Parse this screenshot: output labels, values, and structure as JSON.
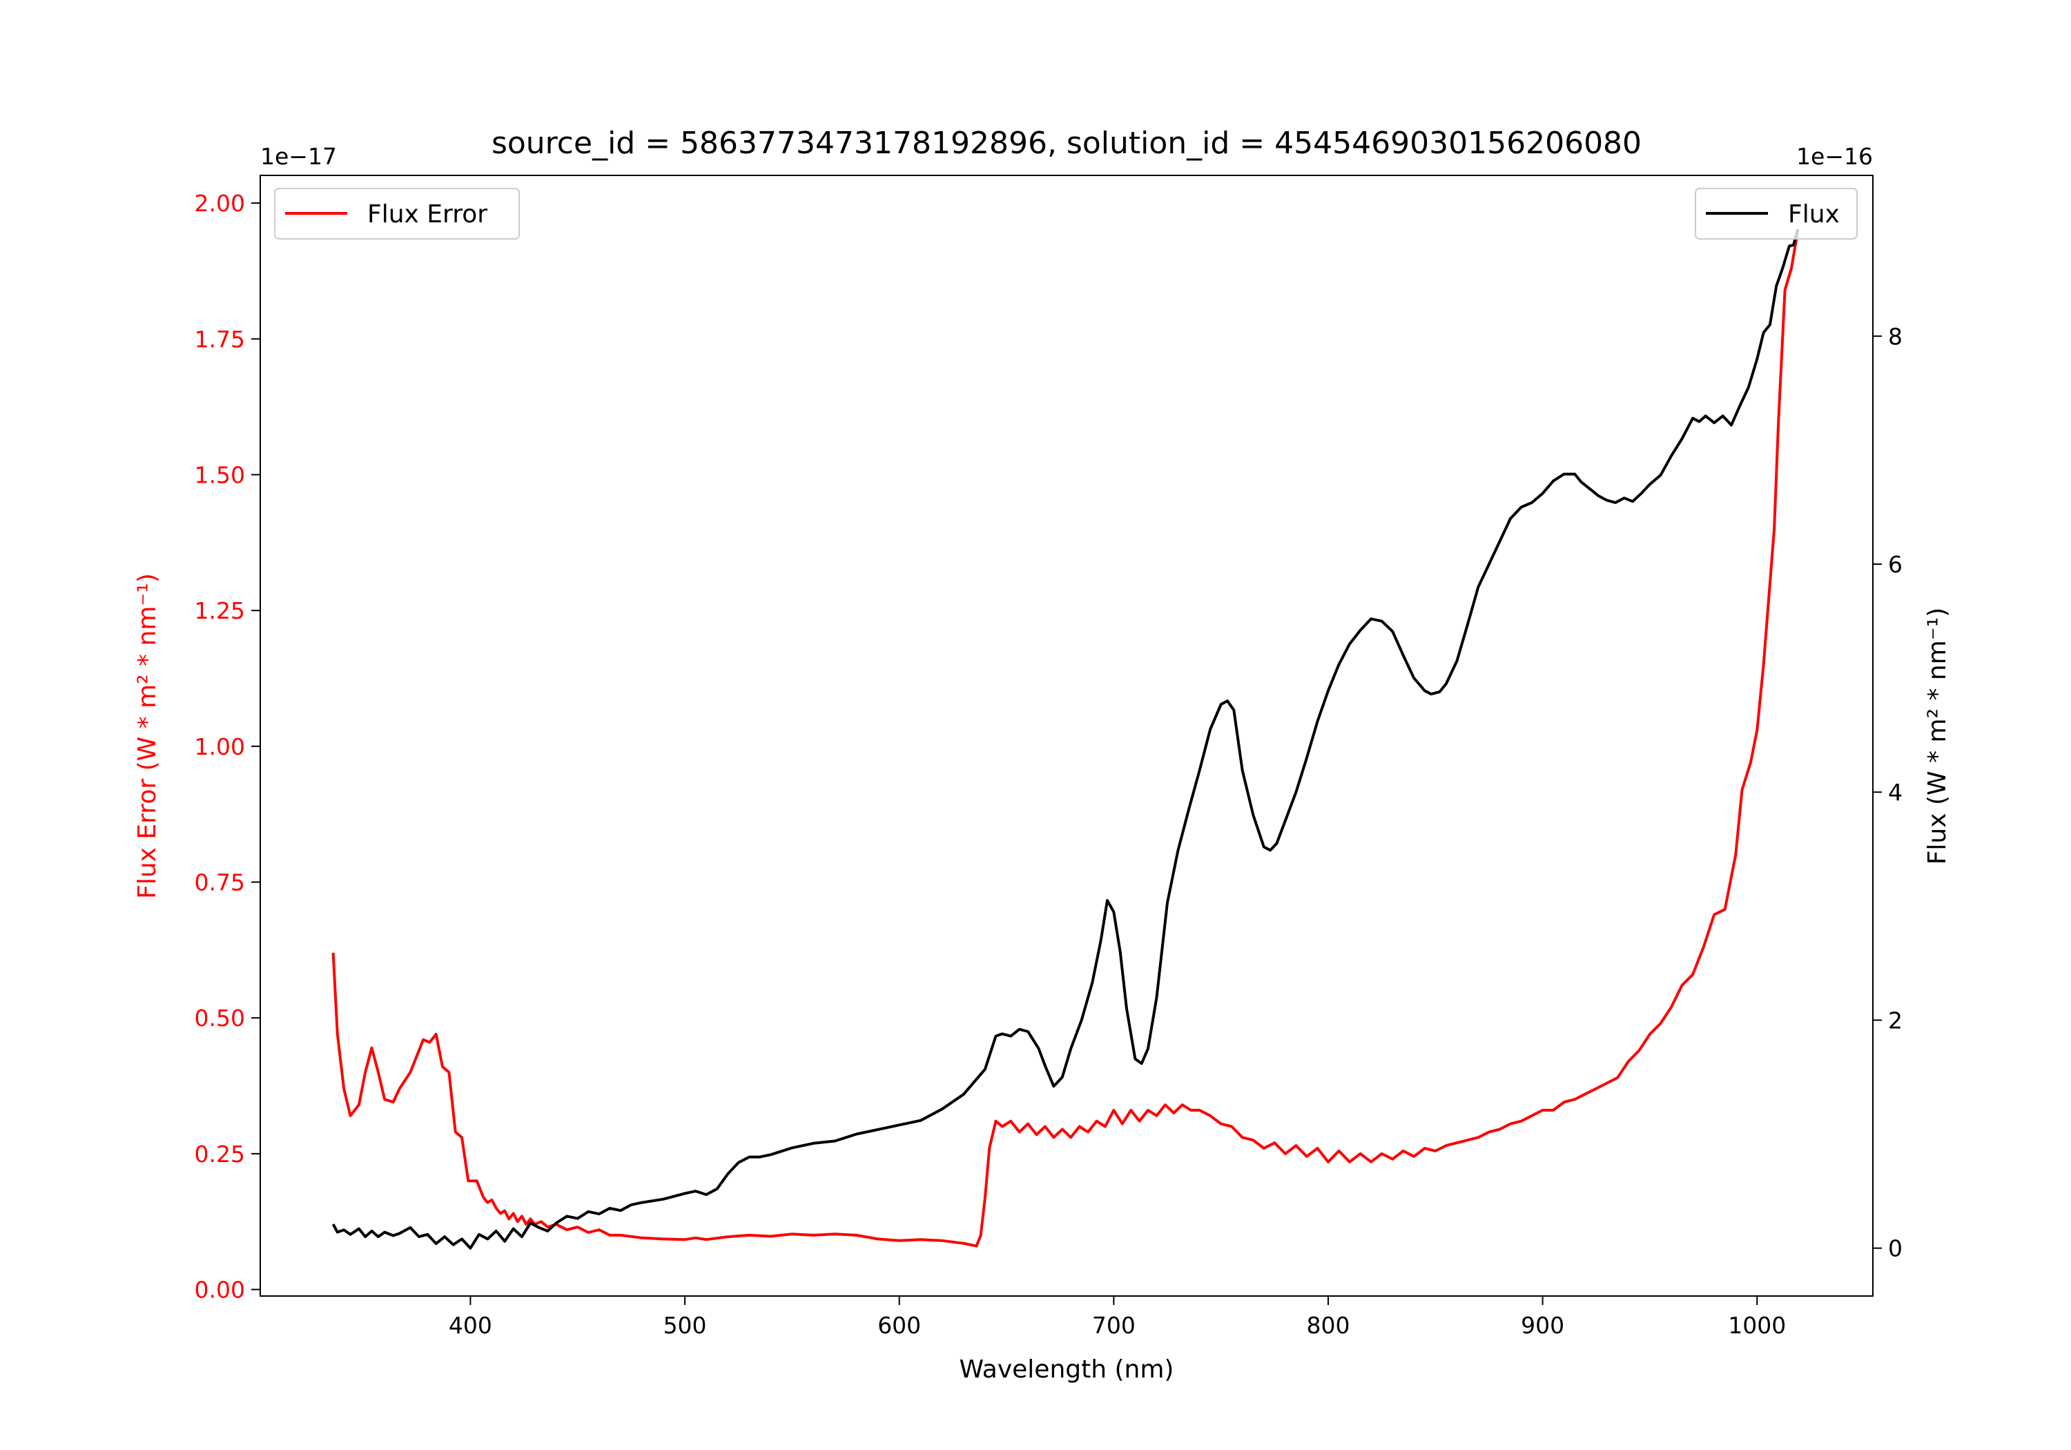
{
  "chart_data": {
    "type": "line",
    "title": "source_id = 5863773473178192896, solution_id = 4545469030156206080",
    "xlabel": "Wavelength (nm)",
    "xlim": [
      302,
      1054
    ],
    "xticks": [
      400,
      500,
      600,
      700,
      800,
      900,
      1000
    ],
    "left_axis": {
      "label": "Flux Error (W * m$^2$ * nm$^{-1}$)",
      "label_display": "Flux Error (W * m² * nm⁻¹)",
      "offset_text": "1e−17",
      "ylim": [
        -0.012,
        2.051
      ],
      "ticks": [
        0.0,
        0.25,
        0.5,
        0.75,
        1.0,
        1.25,
        1.5,
        1.75,
        2.0
      ],
      "tick_labels": [
        "0.00",
        "0.25",
        "0.50",
        "0.75",
        "1.00",
        "1.25",
        "1.50",
        "1.75",
        "2.00"
      ],
      "color": "#ff0000"
    },
    "right_axis": {
      "label_display": "Flux (W * m² * nm⁻¹)",
      "offset_text": "1e−16",
      "ylim": [
        -0.42,
        9.41
      ],
      "ticks": [
        0,
        2,
        4,
        6,
        8
      ],
      "tick_labels": [
        "0",
        "2",
        "4",
        "6",
        "8"
      ],
      "color": "#000000"
    },
    "series": [
      {
        "name": "Flux Error",
        "axis": "left",
        "color": "#ff0000",
        "legend": "top-left",
        "x": [
          336,
          338,
          341,
          344,
          348,
          351,
          354,
          357,
          360,
          364,
          367,
          372,
          375,
          378,
          381,
          384,
          387,
          390,
          393,
          396,
          399,
          403,
          406,
          408,
          410,
          412,
          414,
          416,
          418,
          420,
          422,
          424,
          426,
          428,
          430,
          433,
          436,
          440,
          445,
          450,
          455,
          460,
          465,
          470,
          480,
          490,
          500,
          505,
          510,
          520,
          530,
          540,
          550,
          560,
          570,
          580,
          590,
          600,
          610,
          620,
          630,
          636,
          638,
          640,
          642,
          645,
          648,
          652,
          656,
          660,
          664,
          668,
          672,
          676,
          680,
          684,
          688,
          692,
          696,
          700,
          704,
          708,
          712,
          716,
          720,
          724,
          728,
          732,
          736,
          740,
          745,
          750,
          755,
          760,
          765,
          770,
          775,
          780,
          785,
          790,
          795,
          800,
          805,
          810,
          815,
          820,
          825,
          830,
          835,
          840,
          845,
          850,
          855,
          860,
          865,
          870,
          875,
          880,
          885,
          890,
          895,
          900,
          905,
          910,
          915,
          920,
          925,
          930,
          935,
          940,
          945,
          950,
          955,
          960,
          965,
          970,
          975,
          980,
          985,
          990,
          993,
          997,
          1000,
          1003,
          1006,
          1008,
          1010,
          1013,
          1016,
          1019
        ],
        "y": [
          0.62,
          0.47,
          0.37,
          0.32,
          0.34,
          0.4,
          0.445,
          0.4,
          0.35,
          0.345,
          0.37,
          0.4,
          0.43,
          0.46,
          0.455,
          0.47,
          0.41,
          0.4,
          0.29,
          0.28,
          0.2,
          0.2,
          0.17,
          0.16,
          0.165,
          0.15,
          0.14,
          0.145,
          0.13,
          0.14,
          0.125,
          0.135,
          0.12,
          0.13,
          0.12,
          0.125,
          0.115,
          0.12,
          0.11,
          0.115,
          0.105,
          0.11,
          0.1,
          0.1,
          0.095,
          0.093,
          0.092,
          0.095,
          0.092,
          0.097,
          0.1,
          0.098,
          0.102,
          0.1,
          0.102,
          0.1,
          0.093,
          0.09,
          0.092,
          0.09,
          0.085,
          0.08,
          0.1,
          0.17,
          0.26,
          0.31,
          0.3,
          0.31,
          0.29,
          0.305,
          0.285,
          0.3,
          0.28,
          0.295,
          0.28,
          0.3,
          0.29,
          0.31,
          0.3,
          0.33,
          0.305,
          0.33,
          0.31,
          0.33,
          0.32,
          0.34,
          0.325,
          0.34,
          0.33,
          0.33,
          0.32,
          0.305,
          0.3,
          0.28,
          0.275,
          0.26,
          0.27,
          0.25,
          0.265,
          0.245,
          0.26,
          0.235,
          0.255,
          0.235,
          0.25,
          0.235,
          0.25,
          0.24,
          0.255,
          0.245,
          0.26,
          0.255,
          0.265,
          0.27,
          0.275,
          0.28,
          0.29,
          0.295,
          0.305,
          0.31,
          0.32,
          0.33,
          0.33,
          0.345,
          0.35,
          0.36,
          0.37,
          0.38,
          0.39,
          0.42,
          0.44,
          0.47,
          0.49,
          0.52,
          0.56,
          0.58,
          0.63,
          0.69,
          0.7,
          0.8,
          0.92,
          0.97,
          1.03,
          1.15,
          1.3,
          1.4,
          1.6,
          1.84,
          1.88,
          1.95
        ]
      },
      {
        "name": "Flux",
        "axis": "right",
        "color": "#000000",
        "legend": "top-right",
        "x": [
          336,
          338,
          341,
          344,
          348,
          351,
          354,
          357,
          360,
          364,
          367,
          372,
          376,
          380,
          384,
          388,
          392,
          396,
          400,
          404,
          408,
          412,
          416,
          420,
          424,
          428,
          432,
          436,
          440,
          445,
          450,
          455,
          460,
          465,
          470,
          475,
          480,
          490,
          500,
          505,
          510,
          515,
          520,
          525,
          530,
          535,
          540,
          550,
          560,
          570,
          580,
          590,
          600,
          610,
          620,
          630,
          640,
          645,
          648,
          652,
          656,
          660,
          665,
          668,
          672,
          676,
          680,
          685,
          690,
          694,
          697,
          700,
          703,
          706,
          710,
          713,
          716,
          720,
          725,
          730,
          735,
          740,
          745,
          750,
          753,
          756,
          760,
          765,
          770,
          773,
          776,
          780,
          785,
          790,
          795,
          800,
          805,
          810,
          815,
          820,
          825,
          830,
          835,
          840,
          845,
          848,
          852,
          855,
          860,
          865,
          870,
          875,
          880,
          885,
          890,
          895,
          900,
          905,
          910,
          915,
          918,
          922,
          926,
          930,
          934,
          938,
          942,
          946,
          950,
          955,
          960,
          965,
          970,
          973,
          976,
          980,
          984,
          988,
          992,
          996,
          1000,
          1003,
          1006,
          1009,
          1012,
          1015,
          1017,
          1019
        ],
        "y": [
          0.21,
          0.14,
          0.16,
          0.12,
          0.17,
          0.1,
          0.15,
          0.1,
          0.14,
          0.11,
          0.13,
          0.18,
          0.1,
          0.12,
          0.04,
          0.1,
          0.03,
          0.08,
          0.0,
          0.12,
          0.08,
          0.15,
          0.06,
          0.17,
          0.1,
          0.22,
          0.18,
          0.15,
          0.22,
          0.28,
          0.26,
          0.32,
          0.3,
          0.35,
          0.33,
          0.38,
          0.4,
          0.43,
          0.48,
          0.5,
          0.47,
          0.52,
          0.65,
          0.75,
          0.8,
          0.8,
          0.82,
          0.88,
          0.92,
          0.94,
          1.0,
          1.04,
          1.08,
          1.12,
          1.22,
          1.35,
          1.57,
          1.86,
          1.88,
          1.86,
          1.92,
          1.9,
          1.75,
          1.6,
          1.42,
          1.5,
          1.75,
          2.0,
          2.33,
          2.7,
          3.05,
          2.95,
          2.6,
          2.1,
          1.66,
          1.62,
          1.75,
          2.2,
          3.03,
          3.49,
          3.85,
          4.19,
          4.55,
          4.77,
          4.8,
          4.72,
          4.19,
          3.8,
          3.52,
          3.49,
          3.55,
          3.75,
          4.0,
          4.3,
          4.62,
          4.89,
          5.12,
          5.3,
          5.42,
          5.52,
          5.5,
          5.41,
          5.2,
          5.0,
          4.89,
          4.86,
          4.88,
          4.95,
          5.15,
          5.47,
          5.8,
          6.0,
          6.2,
          6.4,
          6.5,
          6.54,
          6.62,
          6.73,
          6.79,
          6.79,
          6.72,
          6.66,
          6.6,
          6.56,
          6.54,
          6.58,
          6.55,
          6.62,
          6.7,
          6.78,
          6.95,
          7.1,
          7.28,
          7.25,
          7.3,
          7.24,
          7.3,
          7.22,
          7.39,
          7.55,
          7.8,
          8.03,
          8.1,
          8.44,
          8.6,
          8.79,
          8.8,
          8.94
        ]
      }
    ]
  }
}
